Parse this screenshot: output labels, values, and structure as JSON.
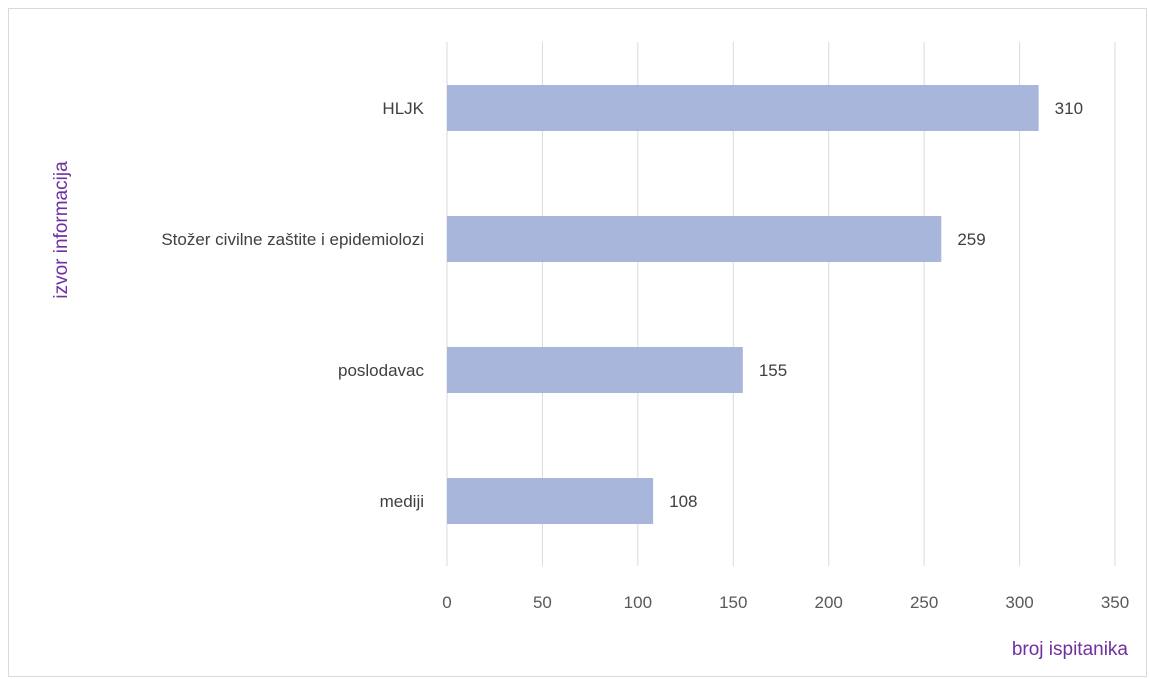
{
  "chart_data": {
    "type": "bar",
    "orientation": "horizontal",
    "categories": [
      "HLJK",
      "Stožer civilne zaštite i epidemiolozi",
      "poslodavac",
      "mediji"
    ],
    "values": [
      310,
      259,
      155,
      108
    ],
    "data_labels": [
      "310",
      "259",
      "155",
      "108"
    ],
    "xlabel": "broj ispitanika",
    "ylabel": "izvor informacija",
    "xlim": [
      0,
      350
    ],
    "xticks": [
      0,
      50,
      100,
      150,
      200,
      250,
      300,
      350
    ],
    "xtick_labels": [
      "0",
      "50",
      "100",
      "150",
      "200",
      "250",
      "300",
      "350"
    ],
    "grid": "vertical",
    "legend": "none",
    "colors": {
      "bar": "#a9b6dc",
      "grid": "#d9d9d9",
      "axis_title": "#7030a0",
      "text": "#404040",
      "ticks": "#595959"
    }
  }
}
